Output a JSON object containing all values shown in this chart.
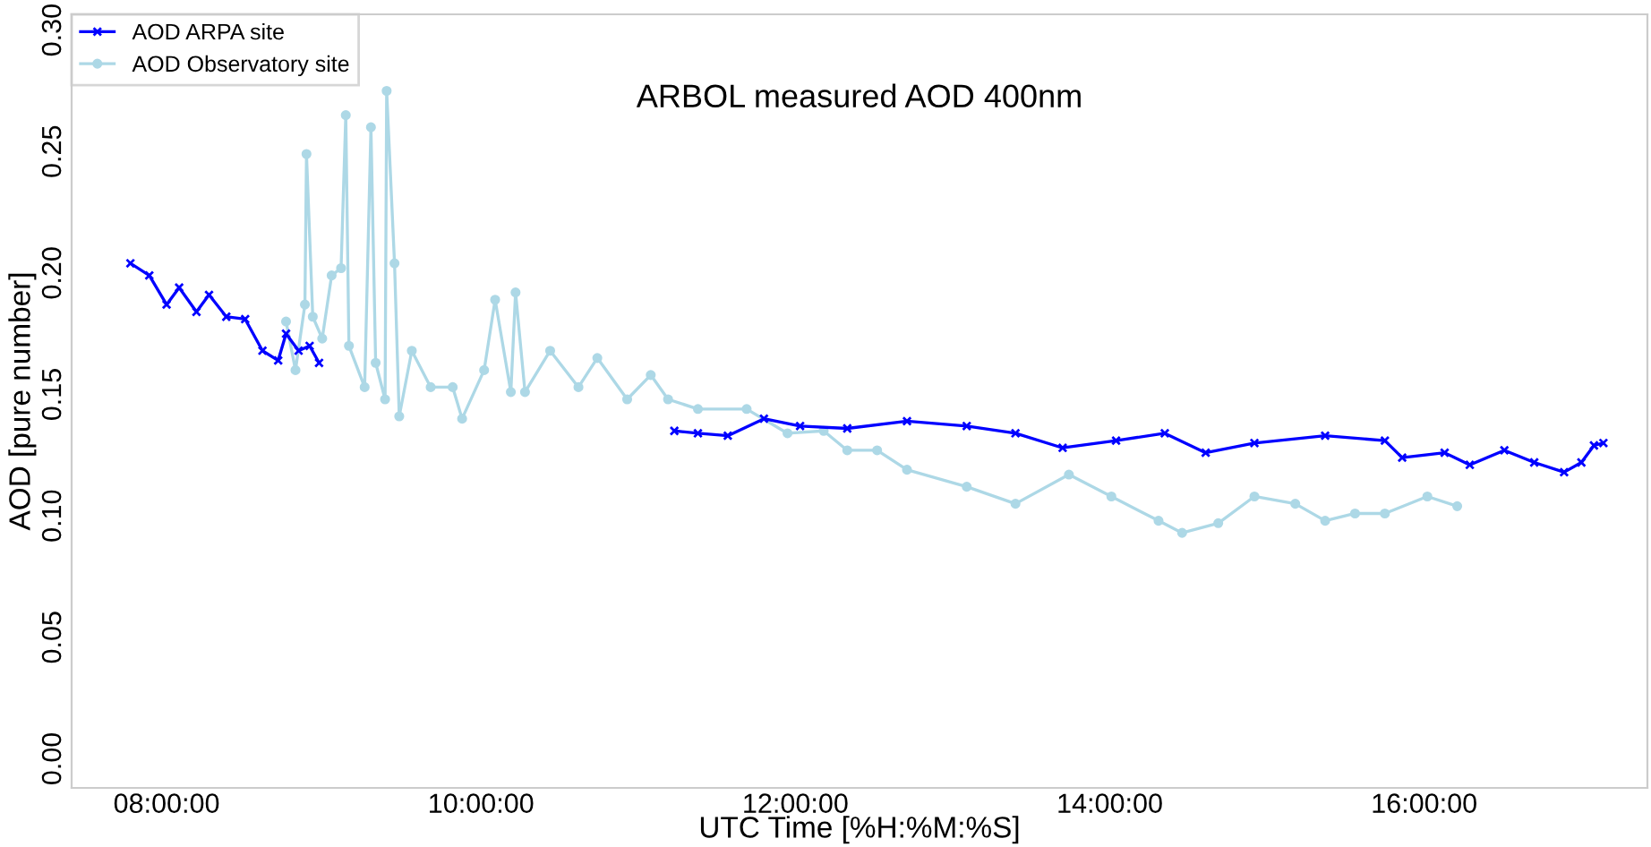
{
  "chart_data": {
    "type": "line",
    "title": "ARBOL measured AOD 400nm",
    "xlabel": "UTC Time [%H:%M:%S]",
    "ylabel": "AOD [pure number]",
    "xlim": [
      7.396,
      17.42
    ],
    "ylim": [
      -0.012,
      0.3065
    ],
    "xticks": [
      {
        "value": 8,
        "label": "08:00:00"
      },
      {
        "value": 10,
        "label": "10:00:00"
      },
      {
        "value": 12,
        "label": "12:00:00"
      },
      {
        "value": 14,
        "label": "14:00:00"
      },
      {
        "value": 16,
        "label": "16:00:00"
      }
    ],
    "yticks": [
      {
        "value": 0,
        "label": "0.00"
      },
      0.05,
      {
        "value": 0.1,
        "label": "0.10"
      },
      0.15,
      {
        "value": 0.2,
        "label": "0.20"
      },
      0.25,
      {
        "value": 0.3,
        "label": "0.30"
      }
    ],
    "grid": false,
    "legend": "top left",
    "series": [
      {
        "name": "AOD ARPA site",
        "color": "#0000ff",
        "marker": "cross",
        "x": [
          7.77,
          7.89,
          8.0,
          8.08,
          8.19,
          8.27,
          8.38,
          8.5,
          8.61,
          8.71,
          8.76,
          8.84,
          8.91,
          8.97,
          null,
          11.23,
          11.38,
          11.57,
          11.8,
          12.03,
          12.33,
          12.71,
          13.09,
          13.4,
          13.7,
          14.04,
          14.35,
          14.61,
          14.92,
          15.37,
          15.75,
          15.86,
          16.13,
          16.29,
          16.51,
          16.7,
          16.89,
          17.0,
          17.08,
          17.14
        ],
        "values": [
          0.204,
          0.199,
          0.187,
          0.194,
          0.184,
          0.191,
          0.182,
          0.181,
          0.168,
          0.164,
          0.175,
          0.168,
          0.17,
          0.163,
          null,
          0.135,
          0.134,
          0.133,
          0.14,
          0.137,
          0.136,
          0.139,
          0.137,
          0.134,
          0.128,
          0.131,
          0.134,
          0.126,
          0.13,
          0.133,
          0.131,
          0.124,
          0.126,
          0.121,
          0.127,
          0.122,
          0.118,
          0.122,
          0.129,
          0.13
        ]
      },
      {
        "name": "AOD Observatory site",
        "color": "#add8e6",
        "marker": "circle",
        "x": [
          8.76,
          8.82,
          8.88,
          8.89,
          8.93,
          8.99,
          9.05,
          9.11,
          9.14,
          9.16,
          9.26,
          9.3,
          9.33,
          9.39,
          9.4,
          9.45,
          9.48,
          9.56,
          9.68,
          9.82,
          9.88,
          10.02,
          10.09,
          10.19,
          10.22,
          10.28,
          10.44,
          10.62,
          10.74,
          10.93,
          11.08,
          11.19,
          11.38,
          11.69,
          11.95,
          12.18,
          12.33,
          12.52,
          12.71,
          13.09,
          13.4,
          13.74,
          14.01,
          14.31,
          14.46,
          14.69,
          14.92,
          15.18,
          15.37,
          15.56,
          15.75,
          16.02,
          16.21
        ],
        "values": [
          0.18,
          0.16,
          0.187,
          0.249,
          0.182,
          0.173,
          0.199,
          0.202,
          0.265,
          0.17,
          0.153,
          0.26,
          0.163,
          0.148,
          0.275,
          0.204,
          0.141,
          0.168,
          0.153,
          0.153,
          0.14,
          0.16,
          0.189,
          0.151,
          0.192,
          0.151,
          0.168,
          0.153,
          0.165,
          0.148,
          0.158,
          0.148,
          0.144,
          0.144,
          0.134,
          0.135,
          0.127,
          0.127,
          0.119,
          0.112,
          0.105,
          0.117,
          0.108,
          0.098,
          0.093,
          0.097,
          0.108,
          0.105,
          0.098,
          0.101,
          0.101,
          0.108,
          0.104
        ]
      }
    ]
  }
}
